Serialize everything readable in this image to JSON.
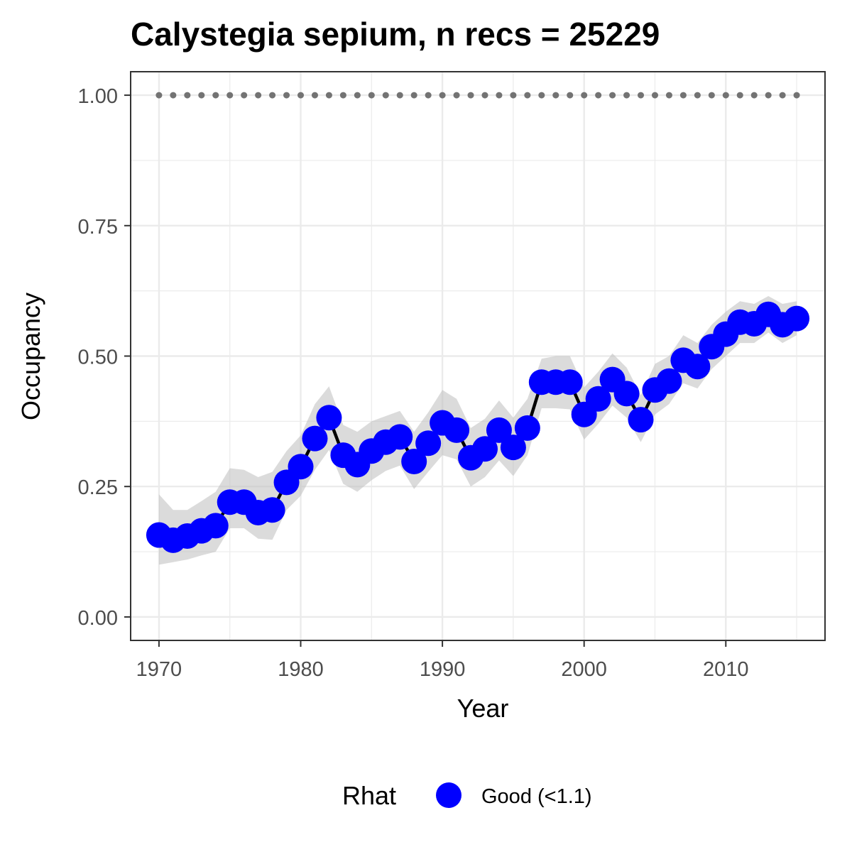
{
  "chart_data": {
    "type": "line",
    "title": "Calystegia sepium, n recs = 25229",
    "xlabel": "Year",
    "ylabel": "Occupancy",
    "xlim": [
      1968,
      2017
    ],
    "ylim": [
      -0.045,
      1.045
    ],
    "x_ticks": [
      1970,
      1980,
      1990,
      2000,
      2010
    ],
    "x_tick_labels": [
      "1970",
      "1980",
      "1990",
      "2000",
      "2010"
    ],
    "y_ticks": [
      0,
      0.25,
      0.5,
      0.75,
      1
    ],
    "y_tick_labels": [
      "0.00",
      "0.25",
      "0.50",
      "0.75",
      "1.00"
    ],
    "grid": true,
    "legend_position": "bottom",
    "legend_title": "Rhat",
    "legend_entries": [
      {
        "label": "Good (<1.1)",
        "color": "#0000ff"
      }
    ],
    "colors": {
      "points": "#0000ff",
      "line": "#000000",
      "ribbon": "#bebebe",
      "reference_dots": "#737373",
      "grid": "#ebebeb",
      "panel_border": "#333333"
    },
    "x": [
      1970,
      1971,
      1972,
      1973,
      1974,
      1975,
      1976,
      1977,
      1978,
      1979,
      1980,
      1981,
      1982,
      1983,
      1984,
      1985,
      1986,
      1987,
      1988,
      1989,
      1990,
      1991,
      1992,
      1993,
      1994,
      1995,
      1996,
      1997,
      1998,
      1999,
      2000,
      2001,
      2002,
      2003,
      2004,
      2005,
      2006,
      2007,
      2008,
      2009,
      2010,
      2011,
      2012,
      2013,
      2014,
      2015
    ],
    "series": [
      {
        "values": [
          0.157,
          0.147,
          0.155,
          0.165,
          0.175,
          0.22,
          0.22,
          0.2,
          0.205,
          0.258,
          0.288,
          0.342,
          0.382,
          0.31,
          0.292,
          0.318,
          0.335,
          0.345,
          0.298,
          0.333,
          0.372,
          0.358,
          0.305,
          0.322,
          0.358,
          0.325,
          0.362,
          0.45,
          0.45,
          0.45,
          0.388,
          0.418,
          0.455,
          0.428,
          0.378,
          0.435,
          0.452,
          0.492,
          0.48,
          0.518,
          0.542,
          0.565,
          0.562,
          0.58,
          0.56,
          0.572
        ],
        "lower": [
          0.1,
          0.105,
          0.11,
          0.118,
          0.125,
          0.17,
          0.17,
          0.15,
          0.148,
          0.205,
          0.232,
          0.282,
          0.32,
          0.255,
          0.24,
          0.262,
          0.28,
          0.29,
          0.245,
          0.278,
          0.31,
          0.302,
          0.25,
          0.268,
          0.3,
          0.27,
          0.31,
          0.4,
          0.4,
          0.398,
          0.34,
          0.37,
          0.405,
          0.382,
          0.335,
          0.388,
          0.408,
          0.448,
          0.438,
          0.475,
          0.5,
          0.525,
          0.525,
          0.545,
          0.525,
          0.54
        ],
        "upper": [
          0.235,
          0.205,
          0.205,
          0.222,
          0.24,
          0.285,
          0.282,
          0.268,
          0.278,
          0.318,
          0.348,
          0.408,
          0.442,
          0.368,
          0.355,
          0.375,
          0.385,
          0.395,
          0.355,
          0.392,
          0.435,
          0.418,
          0.362,
          0.38,
          0.415,
          0.382,
          0.418,
          0.495,
          0.5,
          0.5,
          0.44,
          0.47,
          0.505,
          0.478,
          0.425,
          0.485,
          0.5,
          0.54,
          0.525,
          0.56,
          0.585,
          0.605,
          0.6,
          0.615,
          0.6,
          0.605
        ]
      }
    ],
    "reference_line_value": 1.0
  }
}
